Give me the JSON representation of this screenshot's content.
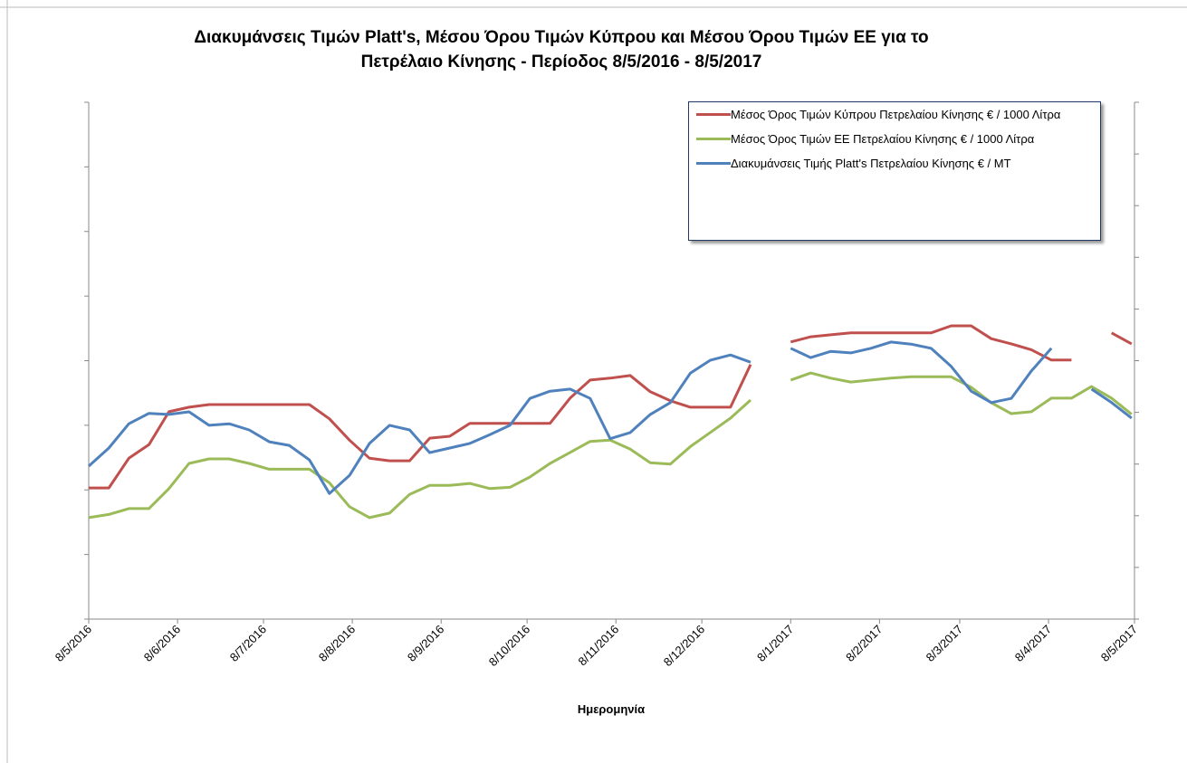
{
  "chart_data": {
    "type": "line",
    "title": "Διακυμάνσεις Τιμών Platt's, Μέσου Όρου Τιμών Κύπρου και Μέσου Όρου Τιμών ΕΕ για το Πετρέλαιο Κίνησης - Περίοδος  8/5/2016 - 8/5/2017",
    "x_label": "Ημερομηνία",
    "x": [
      0,
      7,
      14,
      21,
      28,
      35,
      42,
      49,
      56,
      63,
      70,
      77,
      84,
      91,
      98,
      105,
      112,
      119,
      126,
      133,
      140,
      147,
      154,
      161,
      168,
      175,
      182,
      189,
      196,
      203,
      210,
      217,
      224,
      231,
      238,
      245,
      252,
      259,
      266,
      273,
      280,
      287,
      294,
      301,
      308,
      315,
      322,
      329,
      336,
      343,
      350,
      357,
      364
    ],
    "xlim": [
      0,
      365
    ],
    "xticks": [
      {
        "value": 0,
        "label": "8/5/2016"
      },
      {
        "value": 31,
        "label": "8/6/2016"
      },
      {
        "value": 61,
        "label": "8/7/2016"
      },
      {
        "value": 92,
        "label": "8/8/2016"
      },
      {
        "value": 123,
        "label": "8/9/2016"
      },
      {
        "value": 153,
        "label": "8/10/2016"
      },
      {
        "value": 184,
        "label": "8/11/2016"
      },
      {
        "value": 214,
        "label": "8/12/2016"
      },
      {
        "value": 245,
        "label": "8/1/2017"
      },
      {
        "value": 276,
        "label": "8/2/2017"
      },
      {
        "value": 304,
        "label": "8/3/2017"
      },
      {
        "value": 335,
        "label": "8/4/2017"
      },
      {
        "value": 365,
        "label": "8/5/2017"
      }
    ],
    "ylim": [
      0,
      8
    ],
    "yticks": [
      0,
      1,
      2,
      3,
      4,
      5,
      6,
      7,
      8
    ],
    "y2lim": [
      0,
      10
    ],
    "y2ticks": [
      0,
      1,
      2,
      3,
      4,
      5,
      6,
      7,
      8,
      9,
      10
    ],
    "legend": "top-right",
    "series": [
      {
        "name": "Μέσος Όρος Τιμών Κύπρου Πετρελαίου Κίνησης € / 1000 Λίτρα",
        "color": "#c0504d",
        "values": [
          2.03,
          2.03,
          2.49,
          2.7,
          3.21,
          3.28,
          3.32,
          3.32,
          3.32,
          3.32,
          3.32,
          3.32,
          3.1,
          2.77,
          2.49,
          2.45,
          2.45,
          2.8,
          2.83,
          3.03,
          3.03,
          3.03,
          3.03,
          3.03,
          3.42,
          3.7,
          3.73,
          3.77,
          3.52,
          3.38,
          3.28,
          3.28,
          3.28,
          3.94,
          null,
          4.29,
          4.37,
          4.4,
          4.43,
          4.43,
          4.43,
          4.43,
          4.43,
          4.54,
          4.54,
          4.34,
          4.26,
          4.17,
          4.01,
          4.01,
          null,
          4.43,
          4.26
        ]
      },
      {
        "name": "Μέσος Όρος Τιμών ΕΕ Πετρελαίου Κίνησης  € / 1000 Λίτρα",
        "color": "#9bbb59",
        "values": [
          1.57,
          1.62,
          1.71,
          1.71,
          2.02,
          2.41,
          2.48,
          2.48,
          2.41,
          2.32,
          2.32,
          2.32,
          2.11,
          1.74,
          1.57,
          1.64,
          1.93,
          2.07,
          2.07,
          2.1,
          2.02,
          2.04,
          2.2,
          2.41,
          2.58,
          2.75,
          2.77,
          2.63,
          2.42,
          2.4,
          2.67,
          2.89,
          3.11,
          3.39,
          null,
          3.7,
          3.81,
          3.73,
          3.67,
          3.7,
          3.73,
          3.75,
          3.75,
          3.75,
          3.59,
          3.35,
          3.18,
          3.21,
          3.42,
          3.42,
          3.6,
          3.42,
          3.17
        ]
      },
      {
        "name": "Διακυμάνσεις Τιμής Platt's Πετρελαίου Κίνησης € / MT",
        "color": "#4f81bd",
        "axis": "y2",
        "values": [
          2.96,
          3.31,
          3.78,
          3.98,
          3.96,
          4.01,
          3.75,
          3.78,
          3.66,
          3.43,
          3.36,
          3.08,
          2.43,
          2.78,
          3.4,
          3.75,
          3.66,
          3.22,
          3.31,
          3.4,
          3.57,
          3.75,
          4.27,
          4.41,
          4.45,
          4.27,
          3.49,
          3.61,
          3.96,
          4.19,
          4.76,
          5.01,
          5.11,
          4.97,
          null,
          5.24,
          5.06,
          5.18,
          5.15,
          5.24,
          5.36,
          5.32,
          5.24,
          4.89,
          4.41,
          4.19,
          4.27,
          4.8,
          5.24,
          null,
          4.45,
          4.19,
          3.89
        ]
      }
    ]
  }
}
